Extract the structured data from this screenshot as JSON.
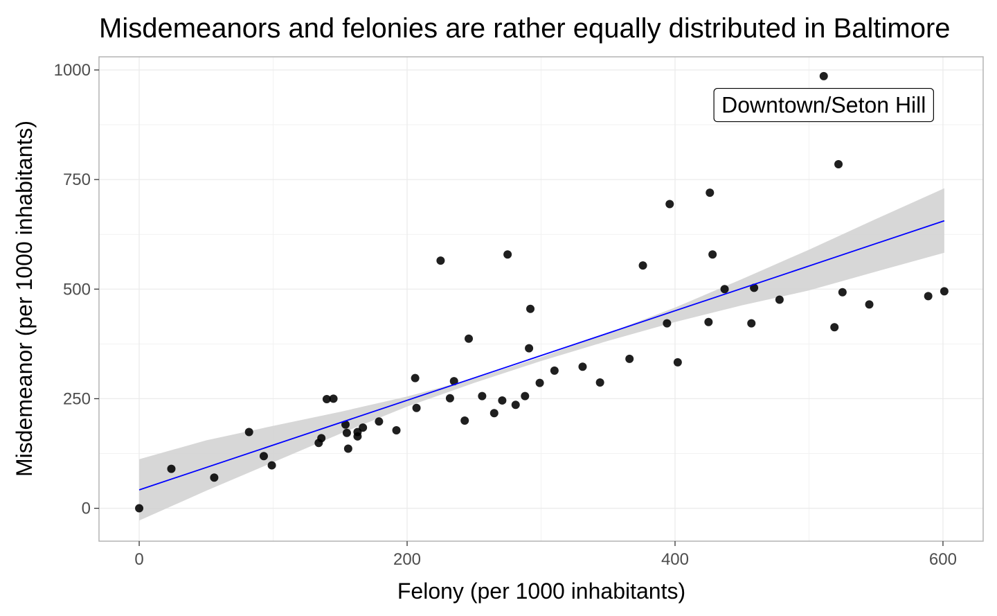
{
  "chart_data": {
    "type": "scatter",
    "title": "Misdemeanors and felonies are rather equally distributed in Baltimore",
    "xlabel": "Felony (per 1000 inhabitants)",
    "ylabel": "Misdemeanor (per 1000 inhabitants)",
    "xlim": [
      -30,
      630
    ],
    "ylim": [
      -75,
      1030
    ],
    "x_ticks": [
      0,
      200,
      400,
      600
    ],
    "y_ticks": [
      0,
      250,
      500,
      750,
      1000
    ],
    "x_tick_labels": [
      "0",
      "200",
      "400",
      "600"
    ],
    "y_tick_labels": [
      "0",
      "250",
      "500",
      "750",
      "1000"
    ],
    "grid": true,
    "colors": {
      "points": "#000000",
      "trend_line": "#0000ff",
      "confidence_band": "#d3d3d3",
      "grid": "#ebebeb",
      "panel_border": "#b3b3b3"
    },
    "points": [
      {
        "x": 0,
        "y": 0
      },
      {
        "x": 24,
        "y": 90
      },
      {
        "x": 56,
        "y": 70
      },
      {
        "x": 82,
        "y": 174
      },
      {
        "x": 93,
        "y": 119
      },
      {
        "x": 99,
        "y": 98
      },
      {
        "x": 134,
        "y": 149
      },
      {
        "x": 136,
        "y": 160
      },
      {
        "x": 140,
        "y": 249
      },
      {
        "x": 145,
        "y": 250
      },
      {
        "x": 154,
        "y": 191
      },
      {
        "x": 155,
        "y": 172
      },
      {
        "x": 156,
        "y": 136
      },
      {
        "x": 163,
        "y": 174
      },
      {
        "x": 163,
        "y": 164
      },
      {
        "x": 167,
        "y": 184
      },
      {
        "x": 179,
        "y": 198
      },
      {
        "x": 192,
        "y": 178
      },
      {
        "x": 206,
        "y": 297
      },
      {
        "x": 207,
        "y": 229
      },
      {
        "x": 225,
        "y": 565
      },
      {
        "x": 232,
        "y": 251
      },
      {
        "x": 235,
        "y": 290
      },
      {
        "x": 243,
        "y": 200
      },
      {
        "x": 246,
        "y": 387
      },
      {
        "x": 256,
        "y": 256
      },
      {
        "x": 265,
        "y": 217
      },
      {
        "x": 271,
        "y": 246
      },
      {
        "x": 275,
        "y": 579
      },
      {
        "x": 281,
        "y": 236
      },
      {
        "x": 288,
        "y": 256
      },
      {
        "x": 291,
        "y": 365
      },
      {
        "x": 292,
        "y": 455
      },
      {
        "x": 299,
        "y": 286
      },
      {
        "x": 310,
        "y": 314
      },
      {
        "x": 331,
        "y": 323
      },
      {
        "x": 344,
        "y": 287
      },
      {
        "x": 366,
        "y": 341
      },
      {
        "x": 376,
        "y": 554
      },
      {
        "x": 394,
        "y": 422
      },
      {
        "x": 396,
        "y": 694
      },
      {
        "x": 402,
        "y": 333
      },
      {
        "x": 425,
        "y": 425
      },
      {
        "x": 426,
        "y": 720
      },
      {
        "x": 428,
        "y": 579
      },
      {
        "x": 437,
        "y": 500
      },
      {
        "x": 457,
        "y": 422
      },
      {
        "x": 459,
        "y": 503
      },
      {
        "x": 478,
        "y": 476
      },
      {
        "x": 511,
        "y": 986
      },
      {
        "x": 519,
        "y": 413
      },
      {
        "x": 522,
        "y": 785
      },
      {
        "x": 525,
        "y": 493
      },
      {
        "x": 545,
        "y": 465
      },
      {
        "x": 589,
        "y": 484
      },
      {
        "x": 601,
        "y": 495
      }
    ],
    "trend": {
      "method": "linear regression",
      "x": [
        0,
        601
      ],
      "y": [
        42,
        656
      ]
    },
    "confidence_band": {
      "x": [
        0,
        50,
        100,
        150,
        200,
        250,
        300,
        350,
        400,
        450,
        500,
        550,
        601
      ],
      "lower": [
        -28,
        40,
        105,
        170,
        232,
        286,
        336,
        382,
        425,
        463,
        497,
        540,
        583
      ],
      "upper": [
        112,
        155,
        188,
        220,
        255,
        296,
        345,
        400,
        458,
        523,
        590,
        660,
        730
      ]
    },
    "annotations": [
      {
        "text": "Downtown/Seton Hill",
        "x": 511,
        "y": 920
      }
    ]
  }
}
